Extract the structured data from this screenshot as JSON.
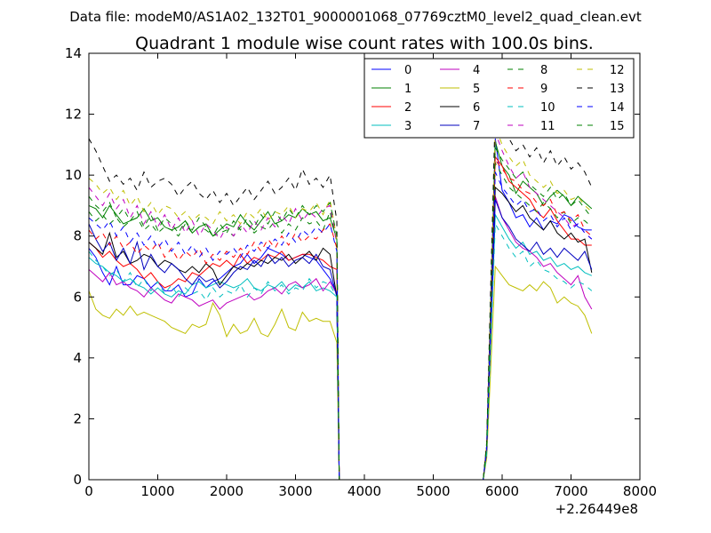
{
  "chart_data": {
    "type": "line",
    "suptitle": "Data file: modeM0/AS1A02_132T01_9000001068_07769cztM0_level2_quad_clean.evt",
    "title": "Quadrant 1 module wise count rates with 100.0s bins.",
    "xlabel": "",
    "ylabel": "",
    "x_offset_label": "+2.26449e8",
    "xlim": [
      0,
      8000
    ],
    "ylim": [
      0,
      14
    ],
    "xticks": [
      "0",
      "1000",
      "2000",
      "3000",
      "4000",
      "5000",
      "6000",
      "7000",
      "8000"
    ],
    "yticks": [
      "0",
      "2",
      "4",
      "6",
      "8",
      "10",
      "12",
      "14"
    ],
    "legend_position": "top-right",
    "bin_seconds": 100,
    "segments": [
      {
        "start": 0,
        "end": 3600
      },
      {
        "start": 5900,
        "end": 7200
      }
    ],
    "series": [
      {
        "name": "0",
        "color": "#0000ff",
        "dash": "solid",
        "seg1": [
          7.6,
          7.3,
          6.8,
          6.4,
          7.0,
          6.4,
          6.4,
          6.7,
          6.6,
          6.3,
          6.5,
          6.2,
          6.2,
          6.4,
          6.0,
          6.1,
          6.6,
          6.3,
          6.5,
          6.6,
          6.8,
          7.0,
          7.1,
          7.4,
          7.1,
          7.3,
          7.6,
          7.5,
          7.4,
          7.2,
          7.3,
          7.4,
          7.3,
          7.2,
          6.9,
          6.6,
          6.1
        ],
        "seg2": [
          11.2,
          9.5,
          9.1,
          8.6,
          8.7,
          8.3,
          8.6,
          8.2,
          8.5,
          8.4,
          8.7,
          8.6,
          8.3,
          8.2,
          8.2
        ]
      },
      {
        "name": "1",
        "color": "#008000",
        "dash": "solid",
        "seg1": [
          9.0,
          8.9,
          8.6,
          9.0,
          8.7,
          8.4,
          8.5,
          8.6,
          8.9,
          8.5,
          8.6,
          8.3,
          8.2,
          8.3,
          8.5,
          8.1,
          8.3,
          8.4,
          8.0,
          8.2,
          8.4,
          8.3,
          8.7,
          8.4,
          8.2,
          8.5,
          8.8,
          8.4,
          8.5,
          8.7,
          8.6,
          8.9,
          8.7,
          8.8,
          8.5,
          8.6,
          7.9
        ],
        "seg2": [
          11.1,
          10.3,
          10.0,
          9.4,
          9.8,
          9.6,
          9.4,
          9.0,
          9.3,
          9.5,
          9.3,
          9.0,
          9.3,
          9.1,
          8.9
        ]
      },
      {
        "name": "2",
        "color": "#ff0000",
        "dash": "solid",
        "seg1": [
          7.8,
          7.6,
          7.3,
          7.5,
          7.2,
          7.0,
          7.1,
          6.9,
          6.6,
          6.8,
          6.5,
          6.3,
          6.4,
          6.6,
          6.5,
          6.8,
          6.7,
          6.9,
          7.1,
          7.0,
          7.2,
          7.0,
          7.4,
          7.1,
          7.3,
          7.2,
          7.4,
          7.3,
          7.5,
          7.2,
          7.3,
          7.4,
          7.4,
          7.3,
          7.2,
          7.0,
          6.9
        ],
        "seg2": [
          10.6,
          10.3,
          9.8,
          9.6,
          9.4,
          9.2,
          8.8,
          8.6,
          8.9,
          8.5,
          8.2,
          7.9,
          7.9,
          7.7,
          7.7
        ]
      },
      {
        "name": "3",
        "color": "#00bfbf",
        "dash": "solid",
        "seg1": [
          7.3,
          7.1,
          7.0,
          6.8,
          6.7,
          6.5,
          6.6,
          6.4,
          6.3,
          6.1,
          6.3,
          6.1,
          6.0,
          6.2,
          6.1,
          6.4,
          6.5,
          6.3,
          6.4,
          6.5,
          6.4,
          6.3,
          6.4,
          6.6,
          6.3,
          6.2,
          6.4,
          6.3,
          6.5,
          6.2,
          6.4,
          6.3,
          6.5,
          6.2,
          6.3,
          6.2,
          6.0
        ],
        "seg2": [
          8.7,
          8.3,
          7.9,
          7.6,
          7.8,
          7.4,
          7.5,
          7.2,
          7.3,
          7.0,
          7.1,
          6.9,
          7.0,
          6.8,
          6.7
        ]
      },
      {
        "name": "4",
        "color": "#bf00bf",
        "dash": "solid",
        "seg1": [
          6.9,
          6.7,
          6.5,
          6.8,
          6.4,
          6.5,
          6.3,
          6.2,
          6.0,
          6.3,
          6.1,
          5.9,
          5.8,
          6.1,
          6.0,
          5.9,
          5.7,
          5.8,
          5.9,
          5.6,
          5.8,
          5.9,
          6.0,
          6.1,
          5.9,
          6.0,
          6.2,
          6.3,
          6.1,
          6.4,
          6.5,
          6.3,
          6.4,
          6.6,
          6.2,
          6.5,
          6.1
        ],
        "seg2": [
          9.3,
          8.6,
          8.2,
          7.8,
          7.6,
          7.5,
          7.3,
          7.0,
          7.1,
          6.8,
          6.6,
          6.4,
          6.7,
          6.0,
          5.6
        ]
      },
      {
        "name": "5",
        "color": "#bfbf00",
        "dash": "solid",
        "seg1": [
          6.2,
          5.6,
          5.4,
          5.3,
          5.6,
          5.4,
          5.7,
          5.4,
          5.5,
          5.4,
          5.3,
          5.2,
          5.0,
          4.9,
          4.8,
          5.1,
          5.0,
          5.1,
          5.8,
          5.4,
          4.7,
          5.1,
          4.8,
          4.9,
          5.3,
          4.8,
          4.7,
          5.1,
          5.6,
          5.0,
          4.9,
          5.5,
          5.2,
          5.3,
          5.2,
          5.2,
          4.5
        ],
        "seg2": [
          7.0,
          6.7,
          6.4,
          6.3,
          6.2,
          6.4,
          6.2,
          6.5,
          6.3,
          5.8,
          6.0,
          5.8,
          5.7,
          5.4,
          4.8
        ]
      },
      {
        "name": "6",
        "color": "#000000",
        "dash": "solid",
        "seg1": [
          7.8,
          7.6,
          7.4,
          8.1,
          7.3,
          7.5,
          7.1,
          7.2,
          7.4,
          7.3,
          7.0,
          7.2,
          7.1,
          6.9,
          6.8,
          7.0,
          6.8,
          7.1,
          6.9,
          6.4,
          6.7,
          7.0,
          6.9,
          7.1,
          7.0,
          7.2,
          7.1,
          7.3,
          7.2,
          7.4,
          7.1,
          7.3,
          7.5,
          7.2,
          7.6,
          7.4,
          6.0
        ],
        "seg2": [
          9.6,
          9.4,
          9.1,
          8.8,
          9.0,
          8.6,
          8.4,
          8.2,
          8.5,
          8.1,
          7.9,
          8.1,
          7.8,
          7.9,
          6.8
        ]
      },
      {
        "name": "7",
        "color": "#0000bf",
        "dash": "solid",
        "seg1": [
          8.4,
          7.9,
          7.5,
          7.8,
          7.2,
          7.6,
          7.1,
          7.8,
          6.9,
          7.4,
          7.0,
          6.8,
          7.1,
          6.9,
          6.6,
          6.4,
          6.7,
          6.5,
          6.6,
          6.3,
          6.5,
          6.8,
          7.0,
          6.9,
          7.2,
          7.0,
          7.4,
          7.1,
          7.3,
          7.0,
          7.2,
          7.3,
          7.1,
          7.4,
          7.0,
          6.9,
          6.0
        ],
        "seg2": [
          9.2,
          8.6,
          8.3,
          7.9,
          7.7,
          7.5,
          7.8,
          7.4,
          7.6,
          7.3,
          7.6,
          7.4,
          7.2,
          7.5,
          6.9
        ]
      },
      {
        "name": "8",
        "color": "#008000",
        "dash": "dashed",
        "seg1": [
          8.8,
          8.5,
          8.7,
          8.4,
          8.6,
          8.3,
          8.5,
          8.6,
          8.2,
          8.4,
          8.1,
          8.3,
          8.2,
          8.0,
          8.4,
          8.1,
          8.3,
          8.2,
          8.0,
          8.1,
          8.2,
          8.0,
          8.3,
          8.4,
          8.1,
          8.3,
          8.2,
          8.5,
          8.1,
          8.4,
          8.2,
          8.6,
          8.4,
          8.5,
          8.2,
          8.8,
          7.8
        ],
        "seg2": [
          10.4,
          10.0,
          9.6,
          9.4,
          9.2,
          9.0,
          8.8,
          9.1,
          8.9,
          8.6,
          8.8,
          8.4,
          8.6,
          8.5,
          8.3
        ]
      },
      {
        "name": "9",
        "color": "#ff0000",
        "dash": "dashed",
        "seg1": [
          8.2,
          7.9,
          8.1,
          7.7,
          8.0,
          7.6,
          7.8,
          7.4,
          7.7,
          7.5,
          7.8,
          7.3,
          7.6,
          7.2,
          7.5,
          7.3,
          7.6,
          7.1,
          7.4,
          7.2,
          7.5,
          7.3,
          7.6,
          7.4,
          7.8,
          7.5,
          7.9,
          7.6,
          8.0,
          7.7,
          8.1,
          7.8,
          8.0,
          7.9,
          8.2,
          8.4,
          7.6
        ],
        "seg2": [
          10.5,
          10.2,
          9.9,
          9.8,
          9.5,
          9.4,
          9.1,
          9.0,
          9.2,
          8.7,
          8.8,
          8.5,
          8.7,
          8.2,
          8.0
        ]
      },
      {
        "name": "10",
        "color": "#00bfbf",
        "dash": "dashed",
        "seg1": [
          7.5,
          7.2,
          7.0,
          6.7,
          6.9,
          6.5,
          6.8,
          6.3,
          6.6,
          6.2,
          6.5,
          6.1,
          6.4,
          6.0,
          6.3,
          6.1,
          6.2,
          5.9,
          6.3,
          6.0,
          6.2,
          6.1,
          6.4,
          6.0,
          6.3,
          6.1,
          6.5,
          6.2,
          6.4,
          6.1,
          6.3,
          6.2,
          6.6,
          6.3,
          6.5,
          6.4,
          6.0
        ],
        "seg2": [
          8.4,
          8.0,
          7.6,
          7.3,
          7.5,
          7.0,
          7.2,
          6.9,
          6.8,
          6.6,
          6.5,
          6.3,
          6.5,
          6.4,
          6.2
        ]
      },
      {
        "name": "11",
        "color": "#bf00bf",
        "dash": "dashed",
        "seg1": [
          9.6,
          9.3,
          9.0,
          9.4,
          8.9,
          9.2,
          8.6,
          9.0,
          8.4,
          8.8,
          8.3,
          8.7,
          8.2,
          8.6,
          8.1,
          8.5,
          8.0,
          8.4,
          8.2,
          7.9,
          8.3,
          8.0,
          8.4,
          8.1,
          8.5,
          8.2,
          8.6,
          8.3,
          8.7,
          8.4,
          8.9,
          8.5,
          8.8,
          8.6,
          8.9,
          9.0,
          7.8
        ],
        "seg2": [
          11.4,
          10.8,
          10.3,
          9.9,
          10.1,
          9.6,
          9.4,
          9.2,
          9.0,
          8.8,
          8.6,
          8.3,
          8.4,
          8.1,
          7.9
        ]
      },
      {
        "name": "12",
        "color": "#bfbf00",
        "dash": "dashed",
        "seg1": [
          9.9,
          9.7,
          9.4,
          9.6,
          9.2,
          9.5,
          9.0,
          9.3,
          8.8,
          9.1,
          8.7,
          9.0,
          8.9,
          8.6,
          8.8,
          8.5,
          8.7,
          8.6,
          8.4,
          8.8,
          8.5,
          8.7,
          8.4,
          8.8,
          8.6,
          8.9,
          8.5,
          8.8,
          8.7,
          9.0,
          8.6,
          8.9,
          8.8,
          9.1,
          8.7,
          9.2,
          7.9
        ],
        "seg2": [
          11.6,
          11.0,
          10.6,
          10.3,
          10.5,
          10.0,
          9.8,
          9.6,
          9.8,
          9.4,
          9.5,
          9.2,
          9.3,
          9.0,
          8.8
        ]
      },
      {
        "name": "13",
        "color": "#000000",
        "dash": "dashed",
        "seg1": [
          11.2,
          10.8,
          10.3,
          9.8,
          10.0,
          9.7,
          9.9,
          9.5,
          10.1,
          9.6,
          9.8,
          9.9,
          9.7,
          9.3,
          9.6,
          9.8,
          9.4,
          9.2,
          9.5,
          9.1,
          9.4,
          9.0,
          9.3,
          9.6,
          9.2,
          9.5,
          9.8,
          9.4,
          9.6,
          9.9,
          9.5,
          10.2,
          9.7,
          9.9,
          9.6,
          10.0,
          8.5
        ],
        "seg2": [
          12.2,
          11.6,
          11.2,
          10.8,
          11.0,
          10.6,
          10.9,
          10.4,
          10.8,
          10.3,
          10.6,
          10.2,
          10.4,
          10.1,
          9.6
        ]
      },
      {
        "name": "14",
        "color": "#0000ff",
        "dash": "dashed",
        "seg1": [
          8.6,
          8.4,
          8.2,
          8.5,
          8.0,
          8.3,
          7.8,
          8.1,
          7.7,
          8.0,
          7.6,
          7.9,
          7.5,
          7.8,
          7.4,
          7.7,
          7.3,
          7.6,
          7.2,
          7.5,
          7.4,
          7.6,
          7.3,
          7.7,
          7.5,
          7.8,
          7.6,
          7.9,
          7.7,
          8.1,
          7.8,
          8.2,
          8.0,
          8.3,
          8.1,
          8.4,
          7.5
        ],
        "seg2": [
          10.1,
          9.6,
          9.3,
          9.0,
          9.2,
          8.8,
          8.9,
          8.5,
          8.7,
          8.3,
          8.6,
          8.2,
          8.4,
          8.1,
          7.9
        ]
      },
      {
        "name": "15",
        "color": "#008000",
        "dash": "dashed",
        "seg1": [
          9.3,
          9.0,
          8.8,
          9.1,
          8.6,
          8.9,
          8.5,
          8.8,
          8.3,
          8.7,
          8.2,
          8.6,
          8.4,
          8.1,
          8.5,
          8.2,
          8.6,
          8.3,
          8.0,
          8.4,
          8.1,
          8.5,
          8.2,
          8.6,
          8.3,
          8.7,
          8.4,
          8.8,
          8.5,
          8.9,
          8.6,
          9.0,
          8.7,
          9.0,
          8.8,
          9.1,
          8.0
        ],
        "seg2": [
          10.9,
          10.5,
          10.2,
          9.9,
          10.1,
          9.7,
          9.5,
          9.3,
          9.6,
          9.2,
          9.4,
          9.0,
          9.2,
          8.9,
          8.6
        ]
      }
    ]
  }
}
